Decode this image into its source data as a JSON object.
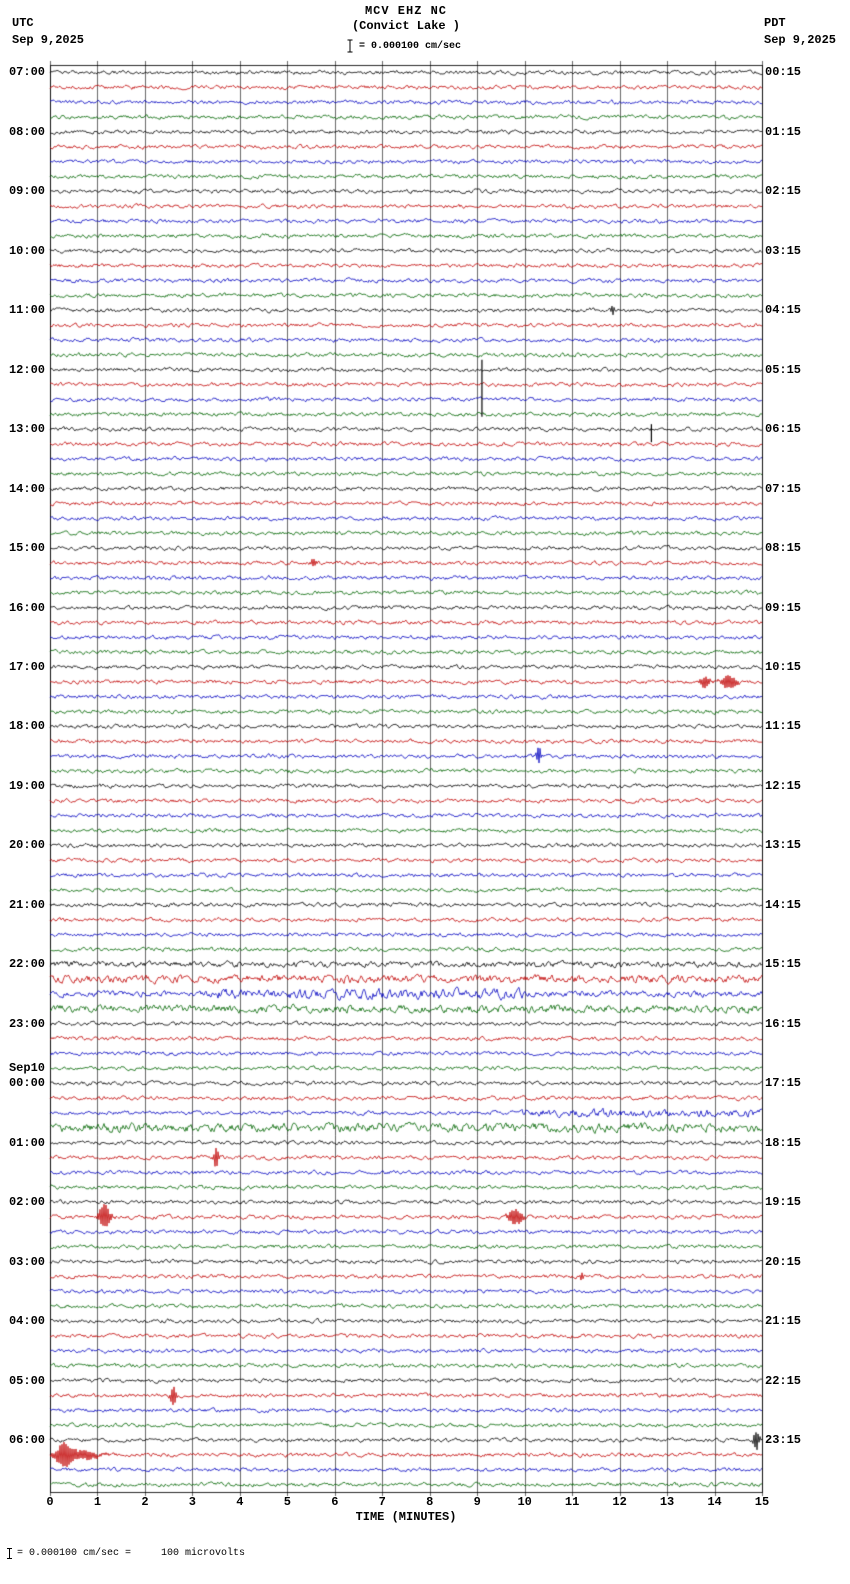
{
  "header": {
    "station": "MCV EHZ NC",
    "location": "(Convict Lake )",
    "scale_label": "= 0.000100 cm/sec",
    "left_timezone": "UTC",
    "left_date": "Sep 9,2025",
    "right_timezone": "PDT",
    "right_date": "Sep 9,2025"
  },
  "footer": {
    "x_axis_label": "TIME (MINUTES)",
    "scale_note": "= 0.000100 cm/sec =     100 microvolts"
  },
  "chart_data": {
    "type": "line",
    "title": "MCV EHZ NC (Convict Lake ) 24-hour helicorder, 15 minutes per line",
    "x_label": "TIME (MINUTES)",
    "x_range_minutes": [
      0,
      15
    ],
    "x_ticks": [
      "0",
      "1",
      "2",
      "3",
      "4",
      "5",
      "6",
      "7",
      "8",
      "9",
      "10",
      "11",
      "12",
      "13",
      "14",
      "15"
    ],
    "num_rows": 96,
    "minutes_per_row": 15,
    "utc_start_row_label": "07:00",
    "row_color_cycle": [
      "#000000",
      "#c00000",
      "#0000c0",
      "#006600"
    ],
    "left_labels": [
      {
        "row": 0,
        "text": "07:00"
      },
      {
        "row": 4,
        "text": "08:00"
      },
      {
        "row": 8,
        "text": "09:00"
      },
      {
        "row": 12,
        "text": "10:00"
      },
      {
        "row": 16,
        "text": "11:00"
      },
      {
        "row": 20,
        "text": "12:00"
      },
      {
        "row": 24,
        "text": "13:00"
      },
      {
        "row": 28,
        "text": "14:00"
      },
      {
        "row": 32,
        "text": "15:00"
      },
      {
        "row": 36,
        "text": "16:00"
      },
      {
        "row": 40,
        "text": "17:00"
      },
      {
        "row": 44,
        "text": "18:00"
      },
      {
        "row": 48,
        "text": "19:00"
      },
      {
        "row": 52,
        "text": "20:00"
      },
      {
        "row": 56,
        "text": "21:00"
      },
      {
        "row": 60,
        "text": "22:00"
      },
      {
        "row": 64,
        "text": "23:00"
      },
      {
        "row": 67,
        "text": "Sep10"
      },
      {
        "row": 68,
        "text": "00:00"
      },
      {
        "row": 72,
        "text": "01:00"
      },
      {
        "row": 76,
        "text": "02:00"
      },
      {
        "row": 80,
        "text": "03:00"
      },
      {
        "row": 84,
        "text": "04:00"
      },
      {
        "row": 88,
        "text": "05:00"
      },
      {
        "row": 92,
        "text": "06:00"
      }
    ],
    "right_labels": [
      {
        "row": 0,
        "text": "00:15"
      },
      {
        "row": 4,
        "text": "01:15"
      },
      {
        "row": 8,
        "text": "02:15"
      },
      {
        "row": 12,
        "text": "03:15"
      },
      {
        "row": 16,
        "text": "04:15"
      },
      {
        "row": 20,
        "text": "05:15"
      },
      {
        "row": 24,
        "text": "06:15"
      },
      {
        "row": 28,
        "text": "07:15"
      },
      {
        "row": 32,
        "text": "08:15"
      },
      {
        "row": 36,
        "text": "09:15"
      },
      {
        "row": 40,
        "text": "10:15"
      },
      {
        "row": 44,
        "text": "11:15"
      },
      {
        "row": 48,
        "text": "12:15"
      },
      {
        "row": 52,
        "text": "13:15"
      },
      {
        "row": 56,
        "text": "14:15"
      },
      {
        "row": 60,
        "text": "15:15"
      },
      {
        "row": 64,
        "text": "16:15"
      },
      {
        "row": 68,
        "text": "17:15"
      },
      {
        "row": 72,
        "text": "18:15"
      },
      {
        "row": 76,
        "text": "19:15"
      },
      {
        "row": 80,
        "text": "20:15"
      },
      {
        "row": 84,
        "text": "21:15"
      },
      {
        "row": 88,
        "text": "22:15"
      },
      {
        "row": 92,
        "text": "23:15"
      }
    ],
    "elevated_noise": [
      {
        "row": 60,
        "from": 0,
        "to": 15,
        "amp": 1.5
      },
      {
        "row": 61,
        "from": 0,
        "to": 15,
        "amp": 2.0
      },
      {
        "row": 62,
        "from": 0,
        "to": 15,
        "amp": 1.5
      },
      {
        "row": 62,
        "from": 3.5,
        "to": 10,
        "amp": 2.6
      },
      {
        "row": 63,
        "from": 0,
        "to": 15,
        "amp": 2.0
      },
      {
        "row": 70,
        "from": 9.8,
        "to": 15,
        "amp": 2.0
      },
      {
        "row": 71,
        "from": 0,
        "to": 15,
        "amp": 2.3
      }
    ],
    "events": [
      {
        "row": 16,
        "kind": "burst",
        "minute": 11.85,
        "width": 0.035,
        "amp": 5
      },
      {
        "row": 20,
        "kind": "tallspike",
        "minute": 9.1,
        "up": 10,
        "down": 47
      },
      {
        "row": 24,
        "kind": "tallspike",
        "minute": 12.67,
        "up": 5,
        "down": 13
      },
      {
        "row": 33,
        "kind": "burst",
        "minute": 5.55,
        "width": 0.07,
        "amp": 3
      },
      {
        "row": 41,
        "kind": "burst",
        "minute": 13.8,
        "width": 0.1,
        "amp": 5
      },
      {
        "row": 41,
        "kind": "burst",
        "minute": 14.3,
        "width": 0.16,
        "amp": 6
      },
      {
        "row": 46,
        "kind": "burst",
        "minute": 10.3,
        "width": 0.05,
        "amp": 8
      },
      {
        "row": 73,
        "kind": "burst",
        "minute": 3.5,
        "width": 0.05,
        "amp": 9
      },
      {
        "row": 77,
        "kind": "burst",
        "minute": 1.15,
        "width": 0.12,
        "amp": 11
      },
      {
        "row": 77,
        "kind": "burst",
        "minute": 9.8,
        "width": 0.15,
        "amp": 7
      },
      {
        "row": 81,
        "kind": "burst",
        "minute": 11.2,
        "width": 0.04,
        "amp": 3
      },
      {
        "row": 89,
        "kind": "burst",
        "minute": 2.6,
        "width": 0.06,
        "amp": 9
      },
      {
        "row": 92,
        "kind": "burst",
        "minute": 14.88,
        "width": 0.06,
        "amp": 9
      },
      {
        "row": 93,
        "kind": "burst",
        "minute": 0.3,
        "width": 0.18,
        "amp": 11
      },
      {
        "row": 93,
        "kind": "burst",
        "minute": 0.75,
        "width": 0.3,
        "amp": 4
      }
    ]
  }
}
